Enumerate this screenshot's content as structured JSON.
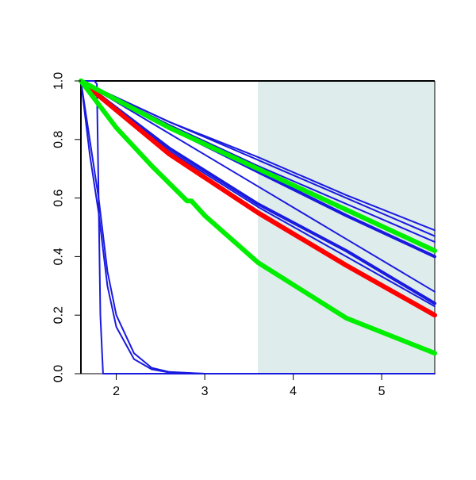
{
  "chart_data": {
    "type": "line",
    "title": "",
    "xlabel": "",
    "ylabel": "",
    "xlim": [
      1.6,
      5.6
    ],
    "ylim": [
      0.0,
      1.0
    ],
    "x_ticks": [
      2,
      3,
      4,
      5
    ],
    "x_tick_labels": [
      "2",
      "3",
      "4",
      "5"
    ],
    "y_ticks": [
      0.0,
      0.2,
      0.4,
      0.6,
      0.8,
      1.0
    ],
    "y_tick_labels": [
      "0.0",
      "0.2",
      "0.4",
      "0.6",
      "0.8",
      "1.0"
    ],
    "grid": false,
    "legend": "none",
    "shaded_region": {
      "x_start": 3.6,
      "x_end": 5.6,
      "color": "#dfecec"
    },
    "colors": {
      "blue": "#1a1adf",
      "red": "#ff0000",
      "green": "#00ee00",
      "shade": "#dfecec",
      "axis": "#000000"
    },
    "series": [
      {
        "color": "blue",
        "width": "thin",
        "x": [
          1.6,
          1.75,
          1.78,
          1.8,
          1.82,
          1.85,
          5.6
        ],
        "y": [
          1.0,
          1.0,
          0.99,
          0.6,
          0.2,
          0.0,
          0.0
        ]
      },
      {
        "color": "blue",
        "width": "thin",
        "x": [
          1.6,
          1.7,
          1.8,
          1.9,
          2.0,
          2.2,
          2.4,
          2.6,
          3.0,
          5.6
        ],
        "y": [
          1.0,
          0.8,
          0.6,
          0.35,
          0.2,
          0.07,
          0.02,
          0.006,
          0.0,
          0.0
        ]
      },
      {
        "color": "blue",
        "width": "thin",
        "x": [
          1.6,
          1.7,
          1.8,
          1.9,
          2.0,
          2.2,
          2.4,
          2.6,
          3.0,
          5.6
        ],
        "y": [
          1.0,
          0.75,
          0.55,
          0.3,
          0.16,
          0.05,
          0.015,
          0.004,
          0.0,
          0.0
        ]
      },
      {
        "color": "blue",
        "width": "thin",
        "x": [
          1.6,
          2.6,
          3.6,
          4.6,
          5.6
        ],
        "y": [
          1.0,
          0.86,
          0.74,
          0.61,
          0.49
        ]
      },
      {
        "color": "blue",
        "width": "thin",
        "x": [
          1.6,
          2.6,
          3.6,
          4.6,
          5.6
        ],
        "y": [
          1.0,
          0.86,
          0.73,
          0.6,
          0.47
        ]
      },
      {
        "color": "blue",
        "width": "thin",
        "x": [
          1.6,
          2.6,
          3.6,
          4.6,
          5.6
        ],
        "y": [
          1.0,
          0.85,
          0.71,
          0.58,
          0.45
        ]
      },
      {
        "color": "blue",
        "width": "thick",
        "x": [
          1.6,
          2.6,
          3.6,
          4.6,
          5.6
        ],
        "y": [
          1.0,
          0.84,
          0.69,
          0.54,
          0.4
        ]
      },
      {
        "color": "blue",
        "width": "thin",
        "x": [
          1.6,
          2.6,
          3.6,
          4.6,
          5.6
        ],
        "y": [
          1.0,
          0.82,
          0.64,
          0.46,
          0.28
        ]
      },
      {
        "color": "blue",
        "width": "thick",
        "x": [
          1.6,
          2.6,
          3.6,
          4.6,
          5.6
        ],
        "y": [
          1.0,
          0.77,
          0.58,
          0.42,
          0.24
        ]
      },
      {
        "color": "blue",
        "width": "thin",
        "x": [
          1.6,
          2.6,
          3.6,
          4.6,
          5.6
        ],
        "y": [
          1.0,
          0.76,
          0.57,
          0.4,
          0.23
        ]
      },
      {
        "color": "red",
        "width": "extra",
        "x": [
          1.6,
          2.6,
          3.6,
          4.6,
          5.6
        ],
        "y": [
          1.0,
          0.75,
          0.55,
          0.37,
          0.2
        ]
      },
      {
        "color": "green",
        "width": "extra",
        "x": [
          1.6,
          2.6,
          3.6,
          4.6,
          5.6
        ],
        "y": [
          1.0,
          0.84,
          0.7,
          0.56,
          0.42
        ]
      },
      {
        "color": "green",
        "width": "extra",
        "x": [
          1.6,
          2.0,
          2.4,
          2.8,
          2.85,
          3.0,
          3.6,
          4.6,
          5.6
        ],
        "y": [
          1.0,
          0.84,
          0.71,
          0.59,
          0.59,
          0.54,
          0.38,
          0.19,
          0.07
        ]
      }
    ]
  }
}
